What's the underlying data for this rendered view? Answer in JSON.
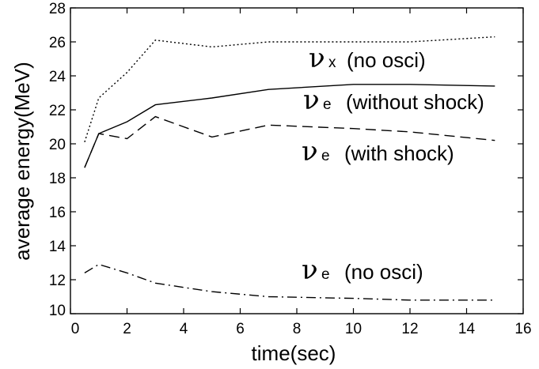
{
  "chart_data": {
    "type": "line",
    "xlabel": "time(sec)",
    "ylabel": "average energy(MeV)",
    "xlim": [
      0,
      16
    ],
    "ylim": [
      10,
      28
    ],
    "xticks": [
      0,
      2,
      4,
      6,
      8,
      10,
      12,
      14,
      16
    ],
    "yticks": [
      10,
      12,
      14,
      16,
      18,
      20,
      22,
      24,
      26,
      28
    ],
    "grid": false,
    "series": [
      {
        "symbol": "ν",
        "subscript": "x",
        "label": "(no osci)",
        "line_style": "dotted",
        "x": [
          0.5,
          1,
          2,
          3,
          5,
          7,
          10,
          12,
          15
        ],
        "y": [
          20.1,
          22.7,
          24.2,
          26.1,
          25.7,
          26.0,
          26.0,
          26.0,
          26.3
        ]
      },
      {
        "symbol": "ν",
        "subscript": "e",
        "label": "(without shock)",
        "line_style": "solid",
        "x": [
          0.5,
          1,
          2,
          3,
          5,
          7,
          10,
          12,
          15
        ],
        "y": [
          18.6,
          20.6,
          21.3,
          22.3,
          22.7,
          23.2,
          23.5,
          23.5,
          23.4
        ]
      },
      {
        "symbol": "ν",
        "subscript": "e",
        "label": "(with shock)",
        "line_style": "dashed",
        "x": [
          0.5,
          1,
          2,
          3,
          5,
          7,
          10,
          12,
          15
        ],
        "y": [
          18.6,
          20.6,
          20.3,
          21.6,
          20.4,
          21.1,
          20.9,
          20.7,
          20.2
        ]
      },
      {
        "symbol": "ν",
        "subscript": "e",
        "label": "(no osci)",
        "line_style": "dashdot",
        "x": [
          0.5,
          1,
          2,
          3,
          5,
          7,
          10,
          12,
          15
        ],
        "y": [
          12.4,
          12.9,
          12.4,
          11.8,
          11.3,
          11.0,
          10.9,
          10.8,
          10.8
        ]
      }
    ]
  }
}
